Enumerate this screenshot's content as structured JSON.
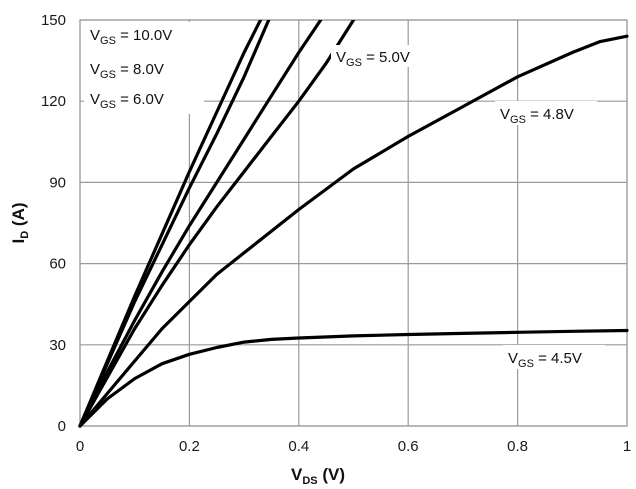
{
  "chart_data": {
    "type": "line",
    "title": "",
    "xlabel": {
      "main": "V",
      "sub": "DS",
      "unit": " (V)"
    },
    "ylabel": {
      "main": "I",
      "sub": "D",
      "unit": " (A)"
    },
    "xlim": [
      0,
      1
    ],
    "ylim": [
      0,
      150
    ],
    "x_ticks": [
      0,
      0.2,
      0.4,
      0.6,
      0.8,
      1
    ],
    "x_tick_labels": [
      "0",
      "0.2",
      "0.4",
      "0.6",
      "0.8",
      "1"
    ],
    "y_ticks": [
      0,
      30,
      60,
      90,
      120,
      150
    ],
    "y_tick_labels": [
      "0",
      "30",
      "60",
      "90",
      "120",
      "150"
    ],
    "grid": true,
    "series": [
      {
        "name": "VGS = 10.0V",
        "label_main": "V",
        "label_sub": "GS",
        "label_rest": " = 10.0V",
        "x": [
          0,
          0.05,
          0.1,
          0.15,
          0.2,
          0.25,
          0.3,
          0.33
        ],
        "y": [
          0,
          24,
          48,
          71,
          94,
          116,
          138,
          150
        ]
      },
      {
        "name": "VGS = 8.0V",
        "label_main": "V",
        "label_sub": "GS",
        "label_rest": " = 8.0V",
        "x": [
          0,
          0.05,
          0.1,
          0.15,
          0.2,
          0.25,
          0.3,
          0.345
        ],
        "y": [
          0,
          23,
          46,
          67,
          88,
          108,
          129,
          150
        ]
      },
      {
        "name": "VGS = 6.0V",
        "label_main": "V",
        "label_sub": "GS",
        "label_rest": " = 6.0V",
        "x": [
          0,
          0.05,
          0.1,
          0.15,
          0.2,
          0.25,
          0.3,
          0.35,
          0.4,
          0.44
        ],
        "y": [
          0,
          20,
          39,
          57,
          74,
          90,
          106,
          122,
          138,
          150
        ]
      },
      {
        "name": "VGS = 5.0V",
        "label_main": "V",
        "label_sub": "GS",
        "label_rest": " = 5.0V",
        "x": [
          0,
          0.05,
          0.1,
          0.15,
          0.2,
          0.25,
          0.3,
          0.35,
          0.4,
          0.45,
          0.5
        ],
        "y": [
          0,
          18,
          36,
          52,
          67,
          81,
          94,
          107,
          120,
          134,
          150
        ]
      },
      {
        "name": "VGS = 4.8V",
        "label_main": "V",
        "label_sub": "GS",
        "label_rest": " = 4.8V",
        "x": [
          0,
          0.05,
          0.1,
          0.15,
          0.2,
          0.25,
          0.3,
          0.4,
          0.5,
          0.6,
          0.7,
          0.8,
          0.9,
          0.95,
          1.0
        ],
        "y": [
          0,
          12,
          24,
          36,
          46,
          56,
          64,
          80,
          95,
          107,
          118,
          129,
          138,
          142,
          144
        ]
      },
      {
        "name": "VGS = 4.5V",
        "label_main": "V",
        "label_sub": "GS",
        "label_rest": " = 4.5V",
        "x": [
          0,
          0.05,
          0.1,
          0.15,
          0.2,
          0.25,
          0.3,
          0.35,
          0.4,
          0.5,
          0.6,
          0.7,
          0.8,
          0.9,
          1.0
        ],
        "y": [
          0,
          10,
          17.5,
          23,
          26.5,
          29,
          31,
          32,
          32.5,
          33.3,
          33.8,
          34.2,
          34.6,
          35,
          35.3
        ]
      }
    ]
  }
}
